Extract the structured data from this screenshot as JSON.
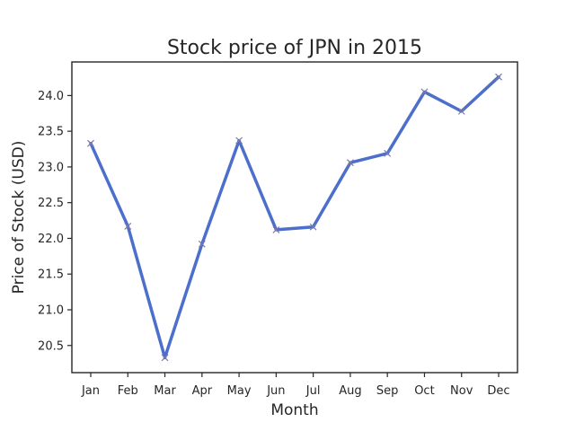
{
  "chart_data": {
    "type": "line",
    "title": "Stock price of JPN in 2015",
    "xlabel": "Month",
    "ylabel": "Price of Stock (USD)",
    "categories": [
      "Jan",
      "Feb",
      "Mar",
      "Apr",
      "May",
      "Jun",
      "Jul",
      "Aug",
      "Sep",
      "Oct",
      "Nov",
      "Dec"
    ],
    "series": [
      {
        "values": [
          23.33,
          22.17,
          20.33,
          21.92,
          23.37,
          22.12,
          22.16,
          23.06,
          23.19,
          24.05,
          23.78,
          24.26
        ]
      }
    ],
    "ylim": [
      20.12,
      24.47
    ],
    "yticks": [
      "20.5",
      "21.0",
      "21.5",
      "22.0",
      "22.5",
      "23.0",
      "23.5",
      "24.0"
    ],
    "marker": "x",
    "grid": false,
    "legend": "none",
    "colors": {
      "line": "#4c6fcc",
      "marker": "#7a7aa8",
      "axis": "#262626"
    }
  }
}
